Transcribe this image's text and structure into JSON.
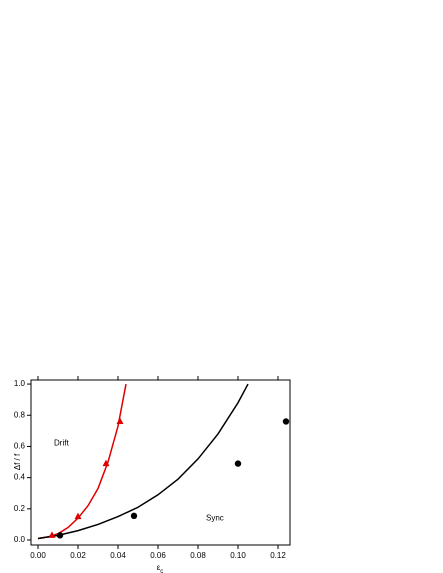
{
  "chart_data": {
    "type": "scatter",
    "x_label": "ε",
    "x_label_sub": "c",
    "y_label": "Δf / f",
    "xlim": [
      -0.0035,
      0.126
    ],
    "ylim": [
      -0.032,
      1.026
    ],
    "xticks": [
      {
        "value": 0,
        "label": "0.00"
      },
      {
        "value": 0.02,
        "label": "0.02"
      },
      {
        "value": 0.04,
        "label": "0.04"
      },
      {
        "value": 0.06,
        "label": "0.06"
      },
      {
        "value": 0.08,
        "label": "0.08"
      },
      {
        "value": 0.1,
        "label": "0.10"
      },
      {
        "value": 0.12,
        "label": "0.12"
      }
    ],
    "yticks": [
      {
        "value": 0,
        "label": "0.0"
      },
      {
        "value": 0.2,
        "label": "0.2"
      },
      {
        "value": 0.4,
        "label": "0.4"
      },
      {
        "value": 0.6,
        "label": "0.6"
      },
      {
        "value": 0.8,
        "label": "0.8"
      },
      {
        "value": 1,
        "label": "1.0"
      }
    ],
    "series": [
      {
        "color": "#e00000",
        "marker": "triangle",
        "x": [
          0.007,
          0.02,
          0.034,
          0.041
        ],
        "values": [
          0.03,
          0.15,
          0.49,
          0.76
        ]
      },
      {
        "color": "#000000",
        "marker": "circle",
        "x": [
          0.011,
          0.048,
          0.1,
          0.124
        ],
        "values": [
          0.03,
          0.155,
          0.49,
          0.76
        ]
      }
    ],
    "curves": [
      {
        "color": "#e00000",
        "x": [
          0,
          0.005,
          0.01,
          0.015,
          0.02,
          0.025,
          0.03,
          0.035,
          0.04,
          0.044
        ],
        "values": [
          0.01,
          0.02,
          0.04,
          0.08,
          0.14,
          0.22,
          0.33,
          0.5,
          0.73,
          1.0
        ]
      },
      {
        "color": "#000000",
        "x": [
          0,
          0.01,
          0.02,
          0.03,
          0.04,
          0.05,
          0.06,
          0.07,
          0.08,
          0.09,
          0.1,
          0.105
        ],
        "values": [
          0.01,
          0.03,
          0.06,
          0.1,
          0.15,
          0.21,
          0.29,
          0.39,
          0.52,
          0.68,
          0.88,
          1.0
        ]
      }
    ],
    "annotations": [
      {
        "text": "Drift",
        "x": 0.008,
        "y": 0.62
      },
      {
        "text": "Sync",
        "x": 0.084,
        "y": 0.14
      }
    ]
  }
}
